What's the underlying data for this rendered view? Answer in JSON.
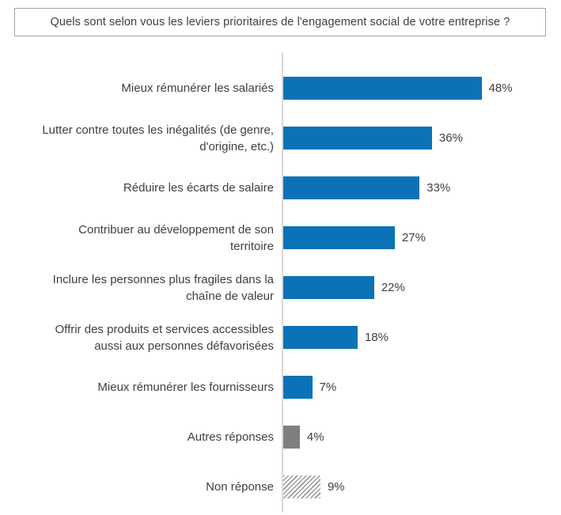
{
  "title": "Quels sont selon vous les leviers prioritaires de l'engagement social de votre entreprise ?",
  "colors": {
    "bar_primary": "#0b72b8",
    "bar_other": "#7f7f7f",
    "hatch_stripe": "#9a9a9a",
    "axis_line": "#d9d9d9",
    "text": "#3f3f3f",
    "title_border": "#a6a6a6"
  },
  "chart_data": {
    "type": "bar",
    "orientation": "horizontal",
    "title": "Quels sont selon vous les leviers prioritaires de l'engagement social de votre entreprise ?",
    "unit": "%",
    "xlim": [
      0,
      52
    ],
    "grid": false,
    "legend": false,
    "categories": [
      "Mieux rémunérer les salariés",
      "Lutter contre toutes les inégalités (de genre, d'origine, etc.)",
      "Réduire les écarts de salaire",
      "Contribuer au développement de son territoire",
      "Inclure les personnes plus fragiles dans la chaîne de valeur",
      "Offrir des produits et services accessibles aussi aux personnes défavorisées",
      "Mieux rémunérer les fournisseurs",
      "Autres réponses",
      "Non réponse"
    ],
    "values": [
      48,
      36,
      33,
      27,
      22,
      18,
      7,
      4,
      9
    ],
    "value_labels": [
      "48%",
      "36%",
      "33%",
      "27%",
      "22%",
      "18%",
      "7%",
      "4%",
      "9%"
    ],
    "bars": [
      {
        "label_lines": [
          "Mieux rémunérer les salariés"
        ],
        "value": 48,
        "display": "48%",
        "style": "primary"
      },
      {
        "label_lines": [
          "Lutter contre toutes les inégalités (de genre,",
          "d'origine, etc.)"
        ],
        "value": 36,
        "display": "36%",
        "style": "primary"
      },
      {
        "label_lines": [
          "Réduire les écarts de salaire"
        ],
        "value": 33,
        "display": "33%",
        "style": "primary"
      },
      {
        "label_lines": [
          "Contribuer au développement de son",
          "territoire"
        ],
        "value": 27,
        "display": "27%",
        "style": "primary"
      },
      {
        "label_lines": [
          "Inclure les personnes plus fragiles dans la",
          "chaîne de valeur"
        ],
        "value": 22,
        "display": "22%",
        "style": "primary"
      },
      {
        "label_lines": [
          "Offrir des produits et services accessibles",
          "aussi aux personnes défavorisées"
        ],
        "value": 18,
        "display": "18%",
        "style": "primary"
      },
      {
        "label_lines": [
          "Mieux rémunérer les fournisseurs"
        ],
        "value": 7,
        "display": "7%",
        "style": "primary"
      },
      {
        "label_lines": [
          "Autres réponses"
        ],
        "value": 4,
        "display": "4%",
        "style": "other"
      },
      {
        "label_lines": [
          "Non réponse"
        ],
        "value": 9,
        "display": "9%",
        "style": "hatched"
      }
    ]
  }
}
